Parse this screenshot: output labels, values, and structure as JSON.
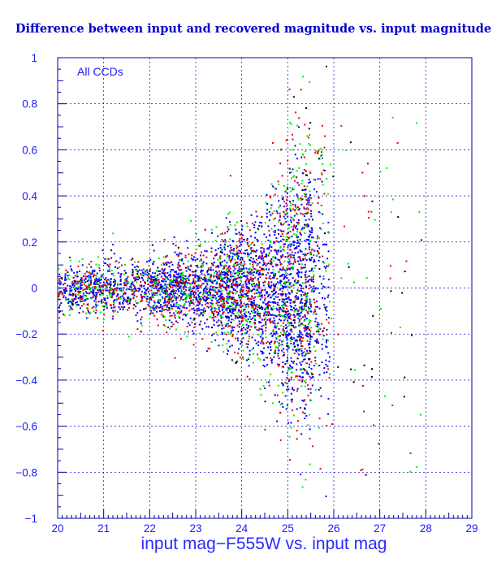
{
  "chart_data": {
    "type": "scatter",
    "title": "Difference between input and recovered magnitude vs. input magnitude",
    "xlabel": "input mag−F555W vs. input mag",
    "ylabel": "",
    "annotation": "All CCDs",
    "xlim": [
      20,
      29
    ],
    "ylim": [
      -1,
      1
    ],
    "x_ticks": [
      "20",
      "21",
      "22",
      "23",
      "24",
      "25",
      "26",
      "27",
      "28",
      "29"
    ],
    "y_ticks": [
      "1",
      "0.8",
      "0.6",
      "0.4",
      "0.2",
      "0",
      "−0.2",
      "−0.4",
      "−0.6",
      "−0.8",
      "−1"
    ],
    "grid": true,
    "background": "#ffffff",
    "page_background": "#000000",
    "frame_color": "#0000aa",
    "series": [
      {
        "color": "#0000ff",
        "count": 2600
      },
      {
        "color": "#00ee00",
        "count": 750
      },
      {
        "color": "#ee0000",
        "count": 850
      },
      {
        "color": "#000000",
        "count": 120
      }
    ],
    "distribution": {
      "core_center": 0.0,
      "spread_at": [
        [
          20,
          0.045
        ],
        [
          22,
          0.06
        ],
        [
          23,
          0.08
        ],
        [
          24,
          0.12
        ],
        [
          24.5,
          0.16
        ],
        [
          25,
          0.22
        ],
        [
          25.3,
          0.26
        ]
      ],
      "cutoff_mag": 25.8,
      "tail_upper_max": 1.0,
      "tail_lower_min": -0.95
    }
  }
}
